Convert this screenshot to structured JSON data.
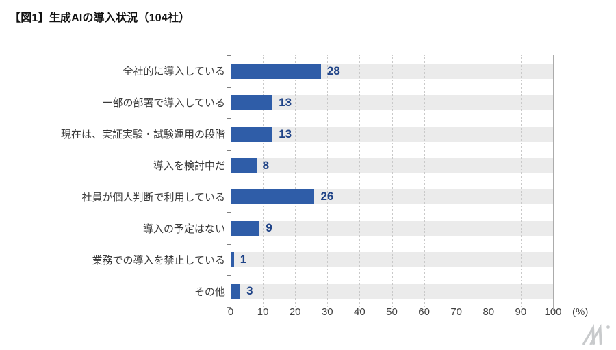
{
  "title": "【図1】生成AIの導入状況（104社）",
  "chart_data": {
    "type": "bar",
    "orientation": "horizontal",
    "title": "【図1】生成AIの導入状況（104社）",
    "categories": [
      "全社的に導入している",
      "一部の部署で導入している",
      "現在は、実証実験・試験運用の段階",
      "導入を検討中だ",
      "社員が個人判断で利用している",
      "導入の予定はない",
      "業務での導入を禁止している",
      "その他"
    ],
    "values": [
      28,
      13,
      13,
      8,
      26,
      9,
      1,
      3
    ],
    "xlabel": "",
    "ylabel": "",
    "xlim": [
      0,
      100
    ],
    "x_ticks": [
      0,
      10,
      20,
      30,
      40,
      50,
      60,
      70,
      80,
      90,
      100
    ],
    "x_unit_label": "(%)",
    "grid": "vertical-dotted",
    "legend": "none",
    "colors": {
      "bar": "#2f5da8",
      "value_label": "#1f4387",
      "row_band": "#ebebeb",
      "gridline": "#c9c9c9",
      "axis_line": "#7f7f7f",
      "plot_right_border": "#ababab",
      "tick_label": "#404040",
      "category_label": "#3a3a3a",
      "title_text": "#111111",
      "logo": "#c8cacc"
    }
  },
  "footer": {
    "logo_icon": "mi-watermark-logo"
  }
}
